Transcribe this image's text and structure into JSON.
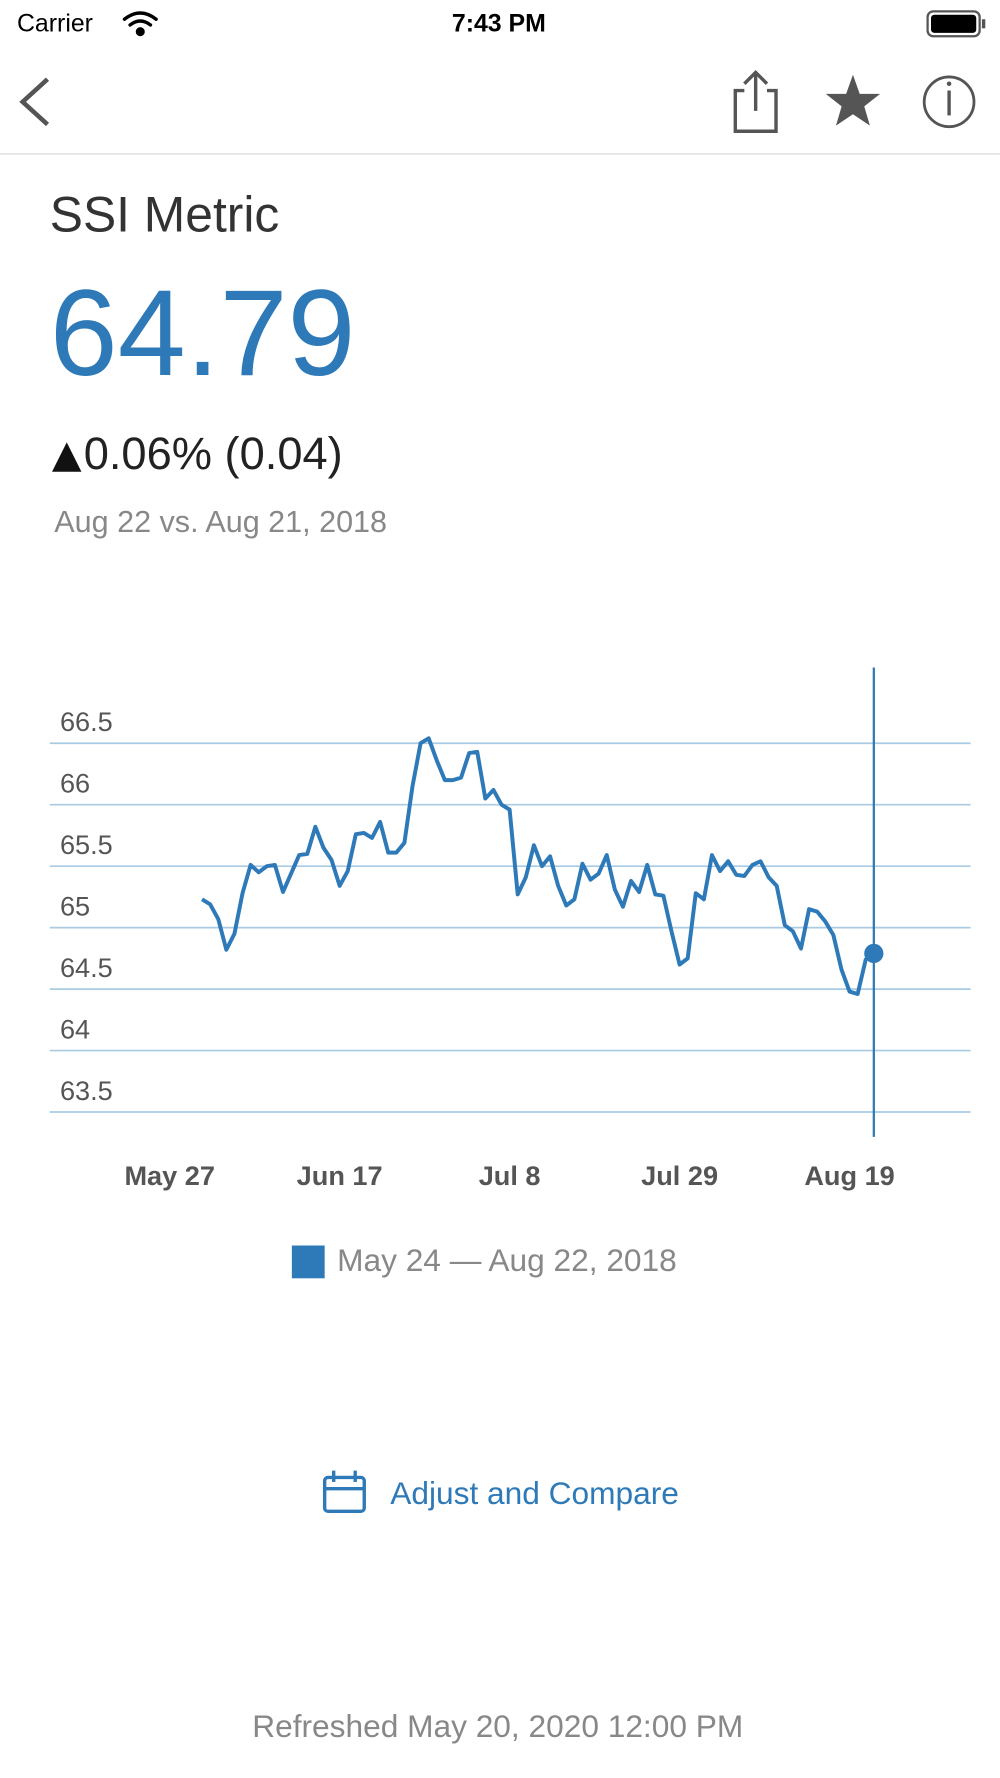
{
  "status_bar": {
    "carrier": "Carrier",
    "time": "7:43 PM"
  },
  "metric": {
    "title": "SSI Metric",
    "value": "64.79",
    "change": "0.06% (0.04)",
    "comparison": "Aug 22 vs. Aug 21, 2018"
  },
  "chart_data": {
    "type": "line",
    "x": [
      "May 31",
      "Jun 1",
      "Jun 2",
      "Jun 3",
      "Jun 4",
      "Jun 5",
      "Jun 6",
      "Jun 7",
      "Jun 8",
      "Jun 9",
      "Jun 10",
      "Jun 11",
      "Jun 12",
      "Jun 13",
      "Jun 14",
      "Jun 15",
      "Jun 16",
      "Jun 17",
      "Jun 18",
      "Jun 19",
      "Jun 20",
      "Jun 21",
      "Jun 22",
      "Jun 23",
      "Jun 24",
      "Jun 25",
      "Jun 26",
      "Jun 27",
      "Jun 28",
      "Jun 29",
      "Jun 30",
      "Jul 1",
      "Jul 2",
      "Jul 3",
      "Jul 4",
      "Jul 5",
      "Jul 6",
      "Jul 7",
      "Jul 8",
      "Jul 9",
      "Jul 10",
      "Jul 11",
      "Jul 12",
      "Jul 13",
      "Jul 14",
      "Jul 15",
      "Jul 16",
      "Jul 17",
      "Jul 18",
      "Jul 19",
      "Jul 20",
      "Jul 21",
      "Jul 22",
      "Jul 23",
      "Jul 24",
      "Jul 25",
      "Jul 26",
      "Jul 27",
      "Jul 28",
      "Jul 29",
      "Jul 30",
      "Jul 31",
      "Aug 1",
      "Aug 2",
      "Aug 3",
      "Aug 4",
      "Aug 5",
      "Aug 6",
      "Aug 7",
      "Aug 8",
      "Aug 9",
      "Aug 10",
      "Aug 11",
      "Aug 12",
      "Aug 13",
      "Aug 14",
      "Aug 15",
      "Aug 16",
      "Aug 17",
      "Aug 18",
      "Aug 19",
      "Aug 20",
      "Aug 21",
      "Aug 22"
    ],
    "series": [
      {
        "name": "May 24 — Aug 22, 2018",
        "color": "#2e7ab8",
        "values": [
          65.23,
          65.19,
          65.07,
          64.82,
          64.95,
          65.28,
          65.51,
          65.45,
          65.5,
          65.51,
          65.29,
          65.44,
          65.59,
          65.6,
          65.82,
          65.65,
          65.55,
          65.34,
          65.46,
          65.76,
          65.77,
          65.73,
          65.86,
          65.61,
          65.61,
          65.69,
          66.15,
          66.5,
          66.54,
          66.36,
          66.2,
          66.2,
          66.22,
          66.42,
          66.43,
          66.05,
          66.12,
          66.0,
          65.96,
          65.27,
          65.41,
          65.67,
          65.5,
          65.58,
          65.34,
          65.18,
          65.23,
          65.52,
          65.39,
          65.44,
          65.59,
          65.31,
          65.17,
          65.38,
          65.29,
          65.51,
          65.27,
          65.26,
          64.97,
          64.7,
          64.75,
          65.28,
          65.23,
          65.59,
          65.46,
          65.54,
          65.43,
          65.42,
          65.51,
          65.54,
          65.41,
          65.34,
          65.02,
          64.97,
          64.83,
          65.15,
          65.13,
          65.05,
          64.94,
          64.66,
          64.48,
          64.46,
          64.74,
          64.79
        ]
      }
    ],
    "xticks": [
      "May 27",
      "Jun 17",
      "Jul 8",
      "Jul 29",
      "Aug 19"
    ],
    "ylim": [
      63.5,
      66.5
    ],
    "yticks": [
      63.5,
      64,
      64.5,
      65,
      65.5,
      66,
      66.5
    ],
    "grid": true
  },
  "action": "Adjust and Compare",
  "footer": "Refreshed May 20, 2020 12:00 PM"
}
